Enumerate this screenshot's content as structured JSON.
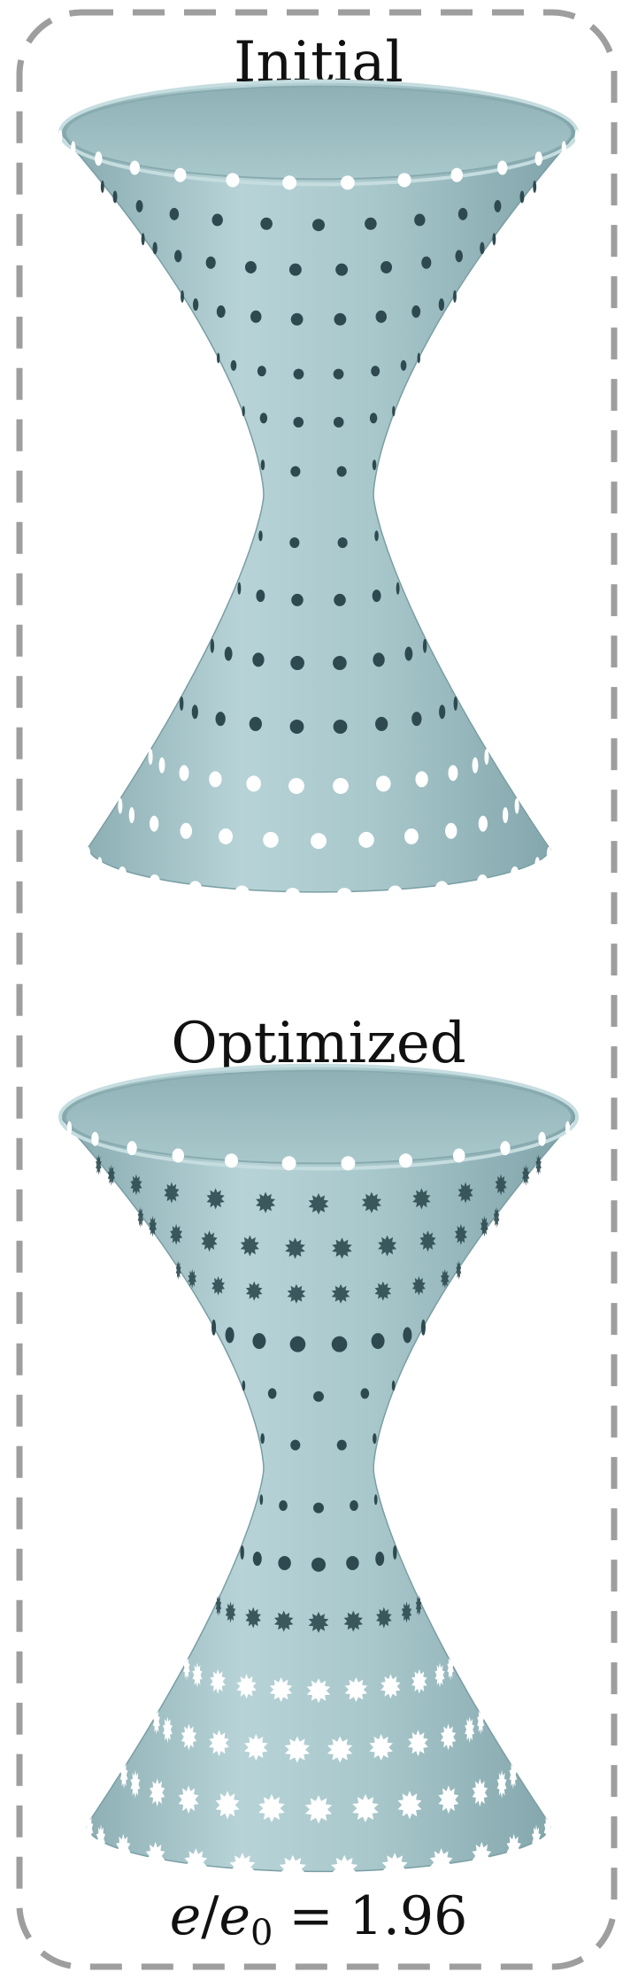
{
  "panel": {
    "initial_label": "Initial",
    "optimized_label": "Optimized",
    "metric_lhs": "e",
    "metric_slash": "/",
    "metric_sub_base": "e",
    "metric_sub_index": "0",
    "metric_eq": "=",
    "metric_value": "1.96"
  },
  "colors": {
    "surface": "#a9c8cc",
    "surface_shadow": "#7fa3a9",
    "surface_highlight": "#c4dcdf",
    "hole": "#2e4a50",
    "border": "#9e9e9e"
  }
}
